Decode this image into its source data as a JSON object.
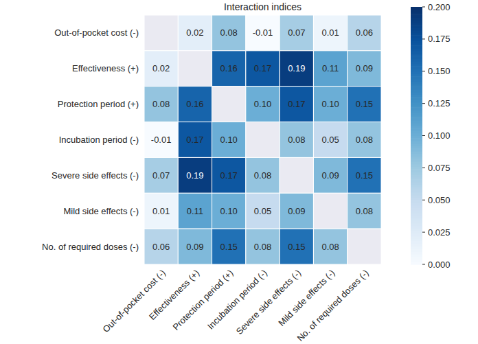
{
  "chart_data": {
    "type": "heatmap",
    "title": "Interaction indices",
    "x_categories": [
      "Out-of-pocket cost (-)",
      "Effectiveness (+)",
      "Protection period (+)",
      "Incubation period (-)",
      "Severe side effects (-)",
      "Mild side effects (-)",
      "No. of required doses (-)"
    ],
    "y_categories": [
      "Out-of-pocket cost (-)",
      "Effectiveness (+)",
      "Protection period (+)",
      "Incubation period (-)",
      "Severe side effects (-)",
      "Mild side effects (-)",
      "No. of required doses (-)"
    ],
    "values": [
      [
        null,
        0.02,
        0.08,
        -0.01,
        0.07,
        0.01,
        0.06
      ],
      [
        0.02,
        null,
        0.16,
        0.17,
        0.19,
        0.11,
        0.09
      ],
      [
        0.08,
        0.16,
        null,
        0.1,
        0.17,
        0.1,
        0.15
      ],
      [
        -0.01,
        0.17,
        0.1,
        null,
        0.08,
        0.05,
        0.08
      ],
      [
        0.07,
        0.19,
        0.17,
        0.08,
        null,
        0.09,
        0.15
      ],
      [
        0.01,
        0.11,
        0.1,
        0.05,
        0.09,
        null,
        0.08
      ],
      [
        0.06,
        0.09,
        0.15,
        0.08,
        0.15,
        0.08,
        null
      ]
    ],
    "value_labels": [
      [
        null,
        "0.02",
        "0.08",
        "-0.01",
        "0.07",
        "0.01",
        "0.06"
      ],
      [
        "0.02",
        null,
        "0.16",
        "0.17",
        "0.19",
        "0.11",
        "0.09"
      ],
      [
        "0.08",
        "0.16",
        null,
        "0.10",
        "0.17",
        "0.10",
        "0.15"
      ],
      [
        "-0.01",
        "0.17",
        "0.10",
        null,
        "0.08",
        "0.05",
        "0.08"
      ],
      [
        "0.07",
        "0.19",
        "0.17",
        "0.08",
        null,
        "0.09",
        "0.15"
      ],
      [
        "0.01",
        "0.11",
        "0.10",
        "0.05",
        "0.09",
        null,
        "0.08"
      ],
      [
        "0.06",
        "0.09",
        "0.15",
        "0.08",
        "0.15",
        "0.08",
        null
      ]
    ],
    "data_labels": true,
    "colorbar": {
      "range": [
        0,
        0.2
      ],
      "ticks": [
        {
          "value": 0,
          "label": "0.000"
        },
        {
          "value": 0.025,
          "label": "0.025"
        },
        {
          "value": 0.05,
          "label": "0.050"
        },
        {
          "value": 0.075,
          "label": "0.075"
        },
        {
          "value": 0.1,
          "label": "0.100"
        },
        {
          "value": 0.125,
          "label": "0.125"
        },
        {
          "value": 0.15,
          "label": "0.150"
        },
        {
          "value": 0.175,
          "label": "0.175"
        },
        {
          "value": 0.2,
          "label": "0.200"
        }
      ]
    }
  }
}
